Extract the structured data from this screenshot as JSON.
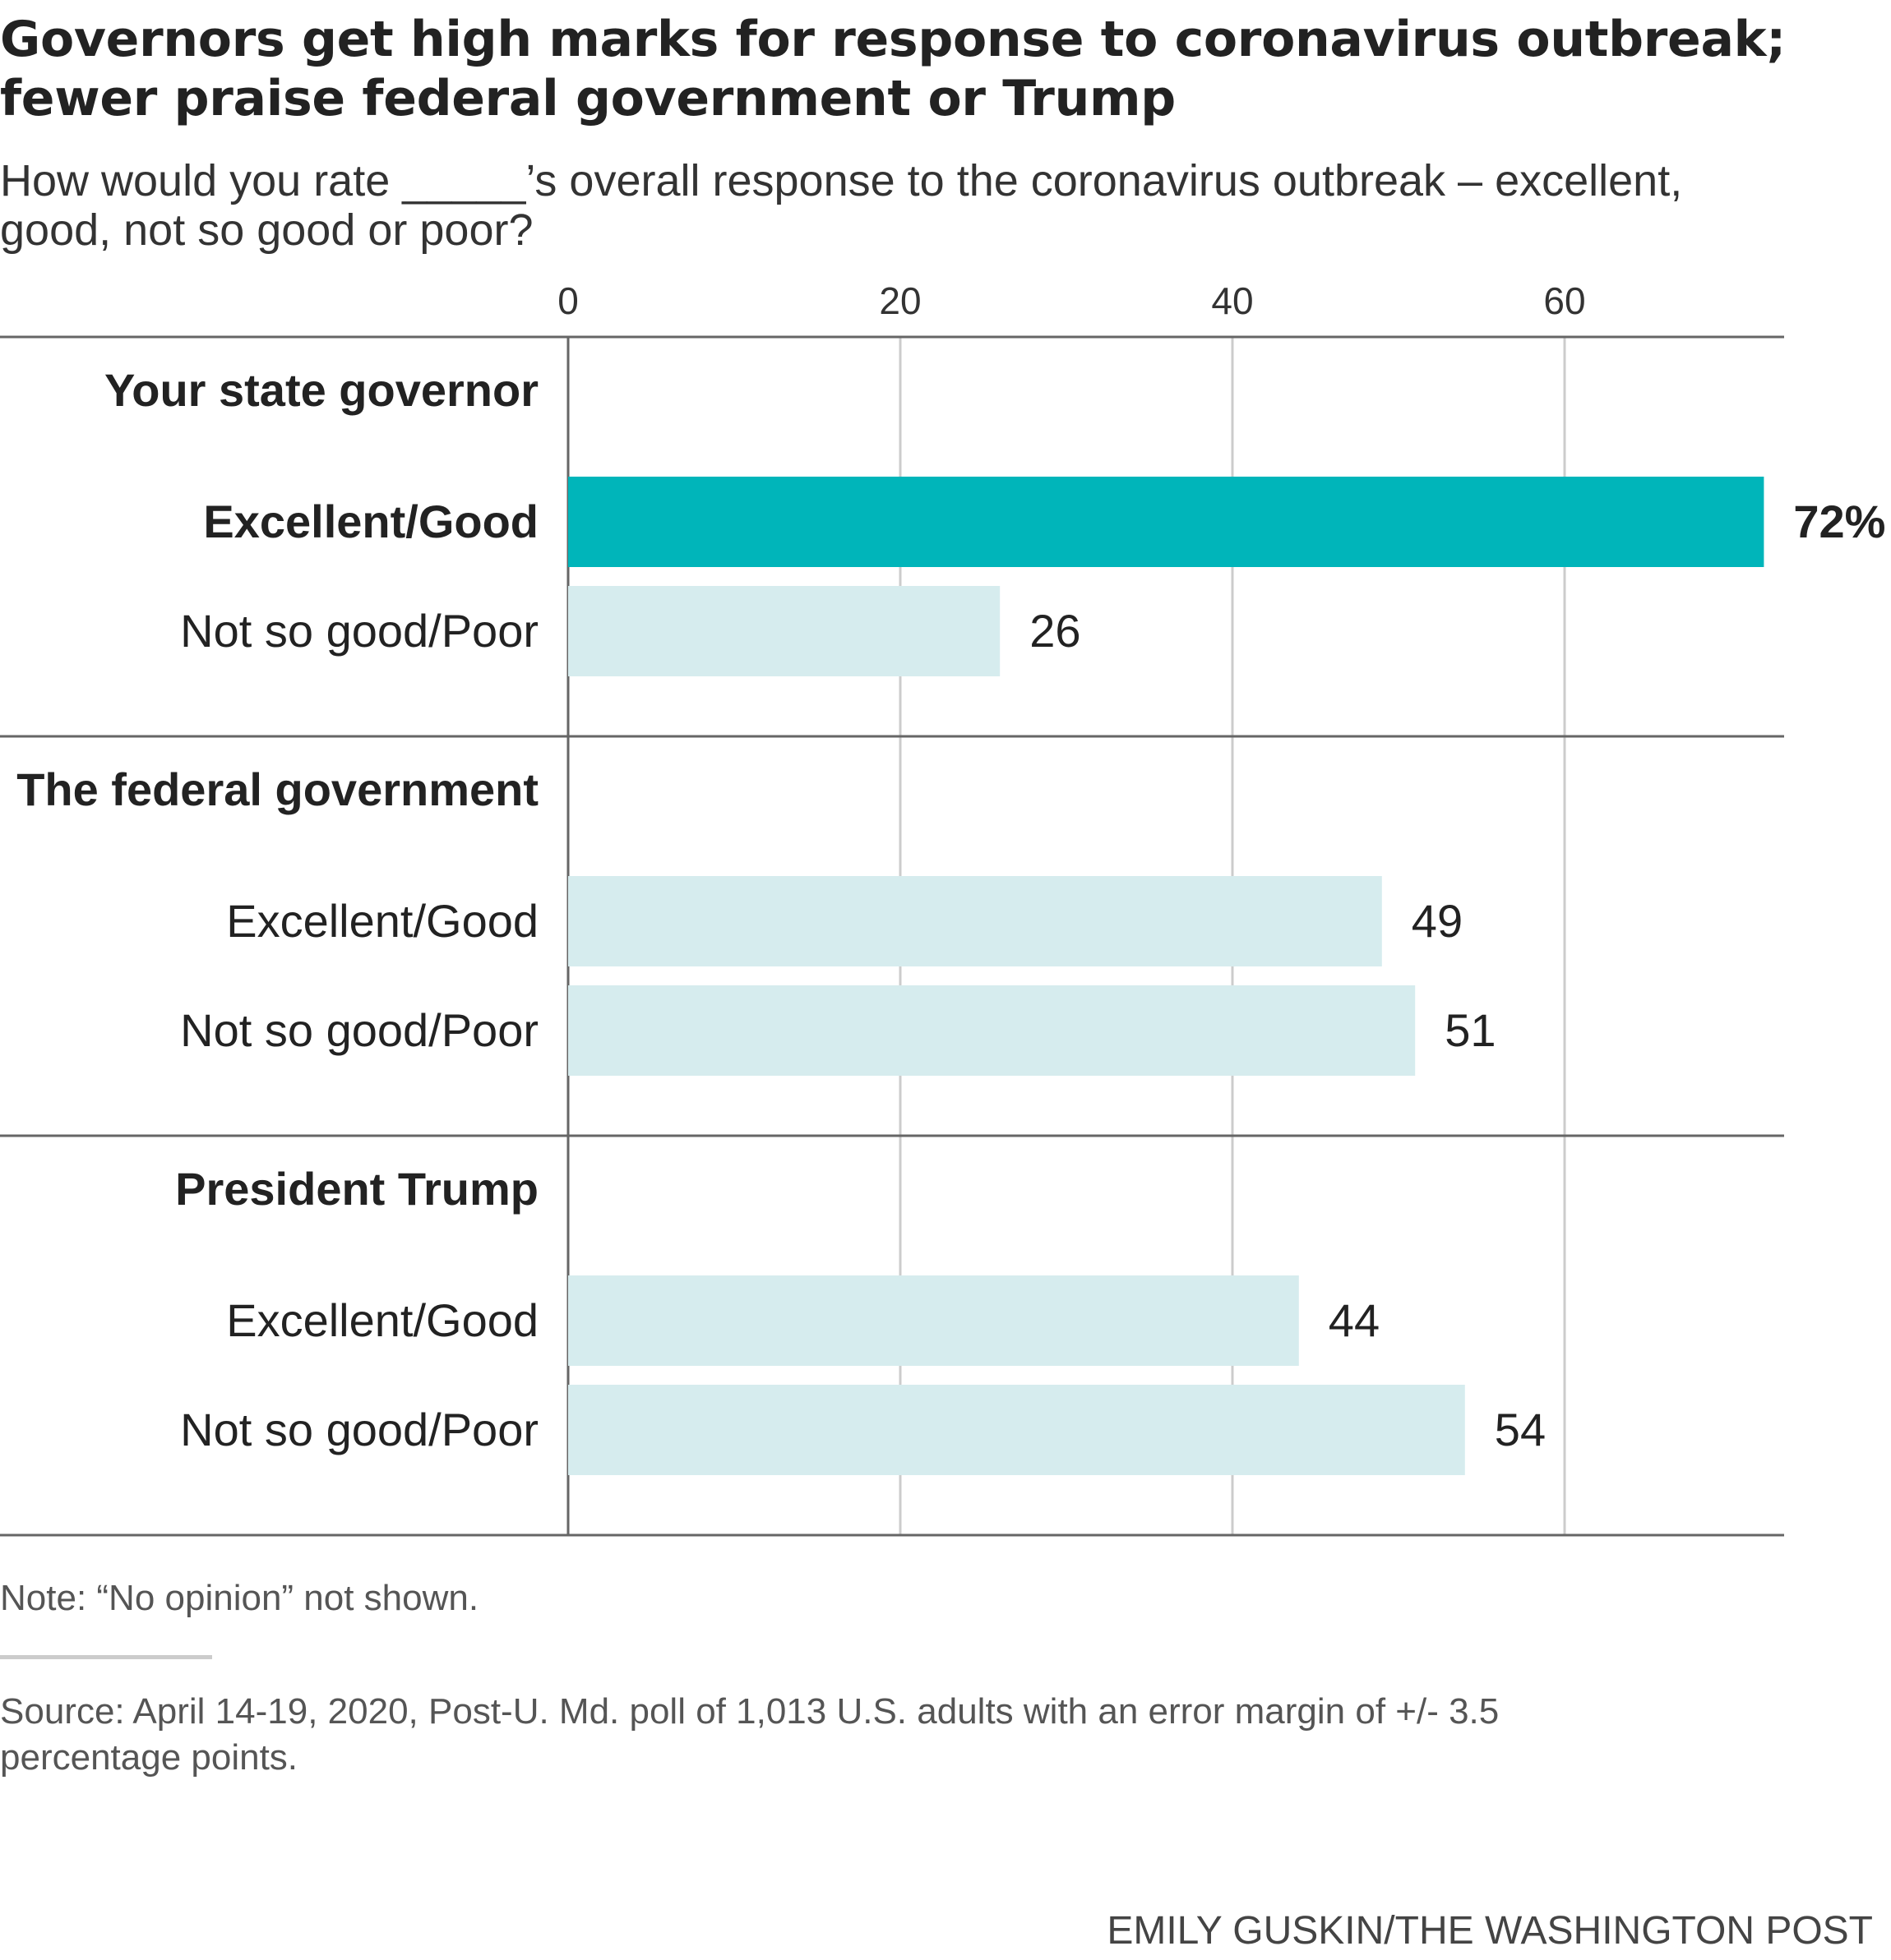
{
  "headline": {
    "title_line1": "Governors get high marks for response to coronavirus outbreak;",
    "title_line2": "fewer praise federal government or Trump",
    "subtitle_line1": "How would you rate _____’s overall response to the coronavirus outbreak – excellent,",
    "subtitle_line2": "good, not so good or poor?"
  },
  "chart_data": {
    "type": "bar",
    "orientation": "horizontal",
    "xlim": [
      0,
      72
    ],
    "xticks": [
      0,
      20,
      40,
      60
    ],
    "colors": {
      "highlight": "#00b5ba",
      "default": "#d6ecee",
      "grid": "#cccccc",
      "divider": "#666666"
    },
    "groups": [
      {
        "name": "Your state governor",
        "bars": [
          {
            "label": "Excellent/Good",
            "value": 72,
            "value_label": "72%",
            "highlight": true
          },
          {
            "label": "Not so good/Poor",
            "value": 26,
            "value_label": "26",
            "highlight": false
          }
        ]
      },
      {
        "name": "The federal government",
        "bars": [
          {
            "label": "Excellent/Good",
            "value": 49,
            "value_label": "49",
            "highlight": false
          },
          {
            "label": "Not so good/Poor",
            "value": 51,
            "value_label": "51",
            "highlight": false
          }
        ]
      },
      {
        "name": "President Trump",
        "bars": [
          {
            "label": "Excellent/Good",
            "value": 44,
            "value_label": "44",
            "highlight": false
          },
          {
            "label": "Not so good/Poor",
            "value": 54,
            "value_label": "54",
            "highlight": false
          }
        ]
      }
    ]
  },
  "footer": {
    "note": "Note: “No opinion” not shown.",
    "source_line1": "Source: April 14-19, 2020, Post-U. Md. poll of 1,013 U.S. adults with an error margin of +/- 3.5",
    "source_line2": "percentage points.",
    "credit": "EMILY GUSKIN/THE WASHINGTON POST"
  }
}
